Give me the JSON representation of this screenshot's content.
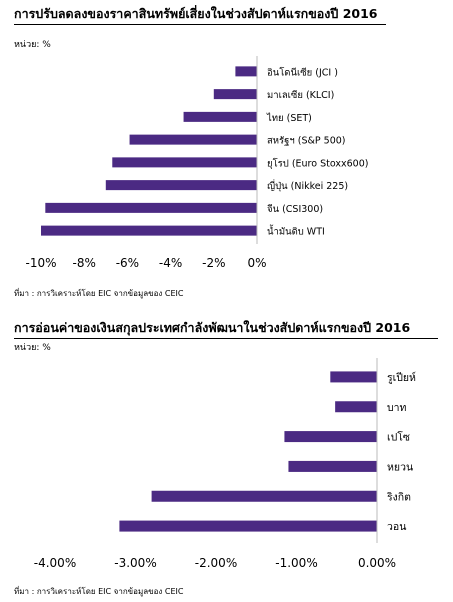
{
  "chart_data": [
    {
      "type": "bar",
      "orientation": "horizontal",
      "title": "การปรับลดลงของราคาสินทรัพย์เสี่ยงในช่วงสัปดาห์แรกของปี 2016",
      "unit": "หน่วย: %",
      "categories": [
        "อินโดนีเซีย   (JCI )",
        "มาเลเซีย    (KLCI)",
        "ไทย    (SET)",
        "สหรัฐฯ    (S&P 500)",
        "ยุโรป    (Euro Stoxx600)",
        "ญี่ปุ่น    (Nikkei 225)",
        "จีน    (CSI300)",
        "น้ำมันดิบ    WTI"
      ],
      "values": [
        -1.0,
        -2.0,
        -3.4,
        -5.9,
        -6.7,
        -7.0,
        -9.8,
        -10.0
      ],
      "xlim": [
        -10,
        0
      ],
      "xticks": [
        -10,
        -8,
        -6,
        -4,
        -2,
        0
      ],
      "xtick_labels": [
        "-10%",
        "-8%",
        "-6%",
        "-4%",
        "-2%",
        "0%"
      ],
      "bar_color": "#4b2a83",
      "grid": false,
      "source": "ที่มา : การวิเคราะห์โดย EIC จากข้อมูลของ    CEIC"
    },
    {
      "type": "bar",
      "orientation": "horizontal",
      "title": "การอ่อนค่าของเงินสกุลประเทศกำลังพัฒนาในช่วงสัปดาห์แรกของปี 2016",
      "unit": "หน่วย: %",
      "categories": [
        "รูเปียห์",
        "บาท",
        "เปโซ",
        "หยวน",
        "ริงกิต",
        "วอน"
      ],
      "values": [
        -0.58,
        -0.52,
        -1.15,
        -1.1,
        -2.8,
        -3.2
      ],
      "xlim": [
        -4,
        0
      ],
      "xticks": [
        -4,
        -3,
        -2,
        -1,
        0
      ],
      "xtick_labels": [
        "-4.00%",
        "-3.00%",
        "-2.00%",
        "-1.00%",
        "0.00%"
      ],
      "bar_color": "#4b2a83",
      "grid": false,
      "source": "ที่มา : การวิเคราะห์โดย EIC จากข้อมูลของ CEIC"
    }
  ]
}
